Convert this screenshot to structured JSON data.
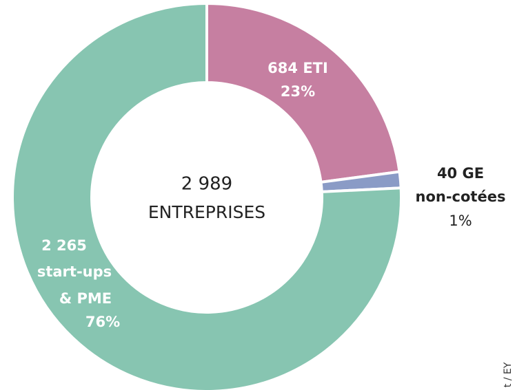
{
  "chart_data": {
    "type": "donut",
    "center_text": [
      "2 989",
      "ENTREPRISES"
    ],
    "values": [
      684,
      40,
      2265
    ],
    "colors": [
      "#c67fa1",
      "#8a9bc6",
      "#87c5b1"
    ],
    "labels": [
      [
        "684 ETI"
      ],
      [
        "40 GE",
        "non-cotées"
      ],
      [
        "2 265",
        "start-ups",
        "& PME"
      ]
    ],
    "percent_labels": [
      "23%",
      "1%",
      "76%"
    ],
    "source": "t / EY"
  }
}
